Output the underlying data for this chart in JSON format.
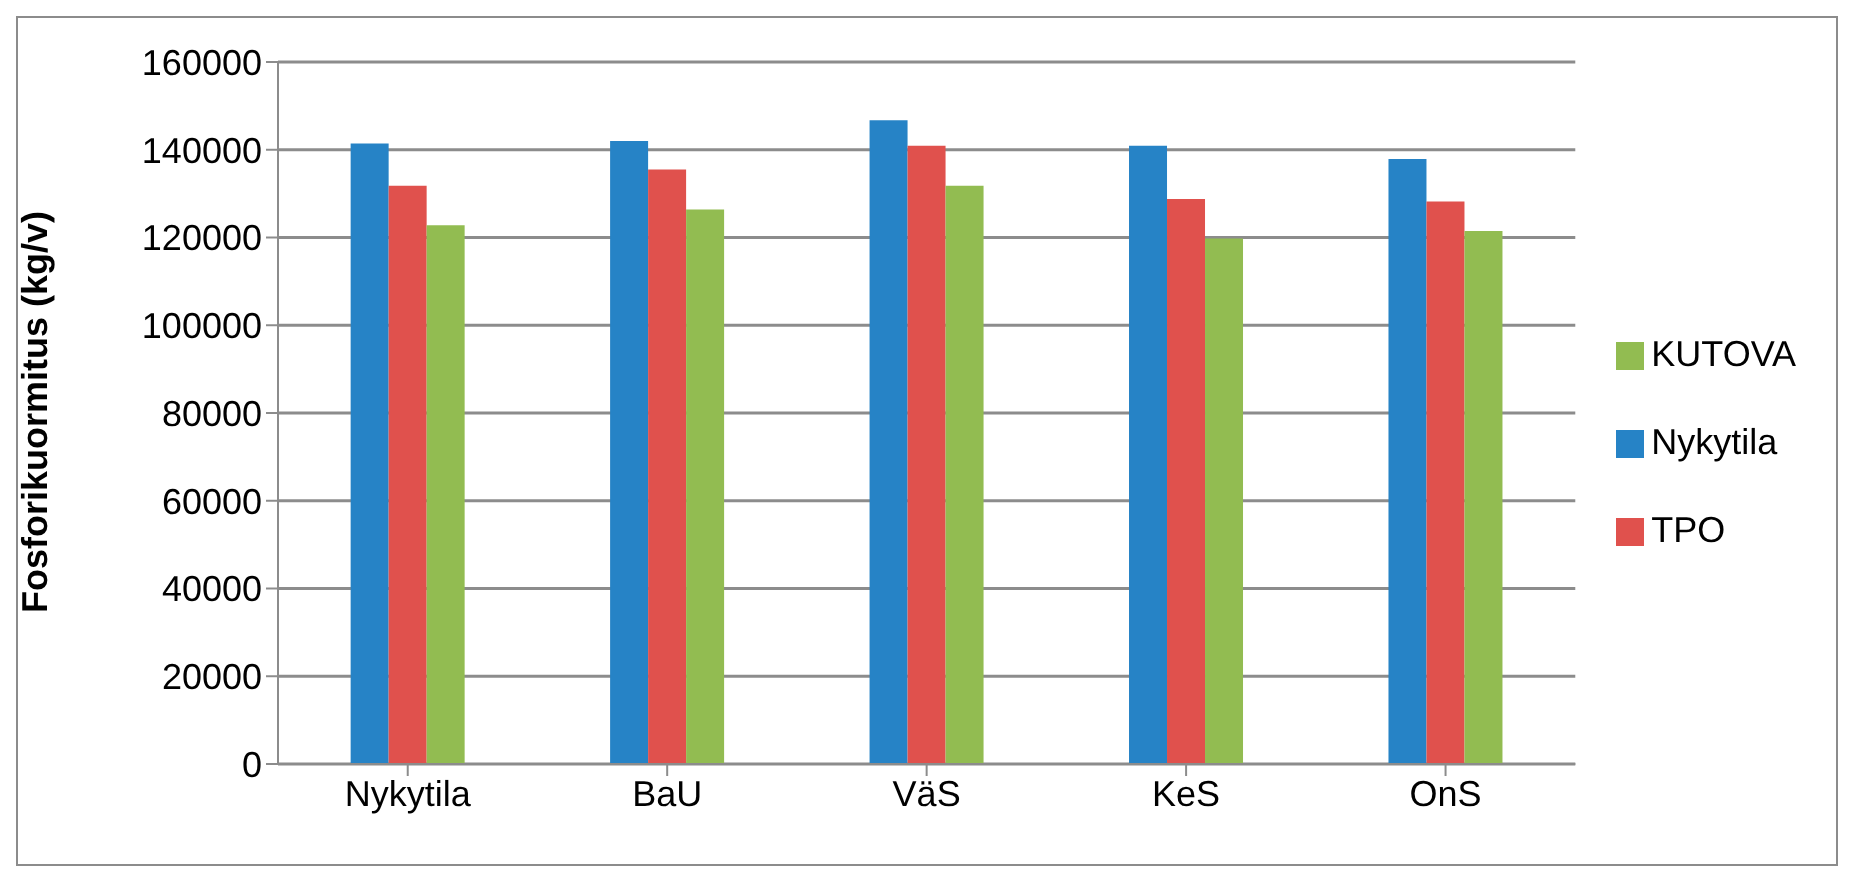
{
  "chart_data": {
    "type": "bar",
    "ylabel": "Fosforikuormitus (kg/v)",
    "categories": [
      "Nykytila",
      "BaU",
      "VäS",
      "KeS",
      "OnS"
    ],
    "series": [
      {
        "name": "Nykytila",
        "color": "#2683c6",
        "values": [
          141400,
          142000,
          146700,
          140900,
          137900
        ]
      },
      {
        "name": "TPO",
        "color": "#e0514d",
        "values": [
          131800,
          135500,
          140900,
          128800,
          128200
        ]
      },
      {
        "name": "KUTOVA",
        "color": "#92bc51",
        "values": [
          122800,
          126400,
          131800,
          119800,
          121500
        ]
      }
    ],
    "ylim": [
      0,
      160000
    ],
    "yticks": [
      0,
      20000,
      40000,
      60000,
      80000,
      100000,
      120000,
      140000,
      160000
    ],
    "grid": "y",
    "legend": "right"
  }
}
